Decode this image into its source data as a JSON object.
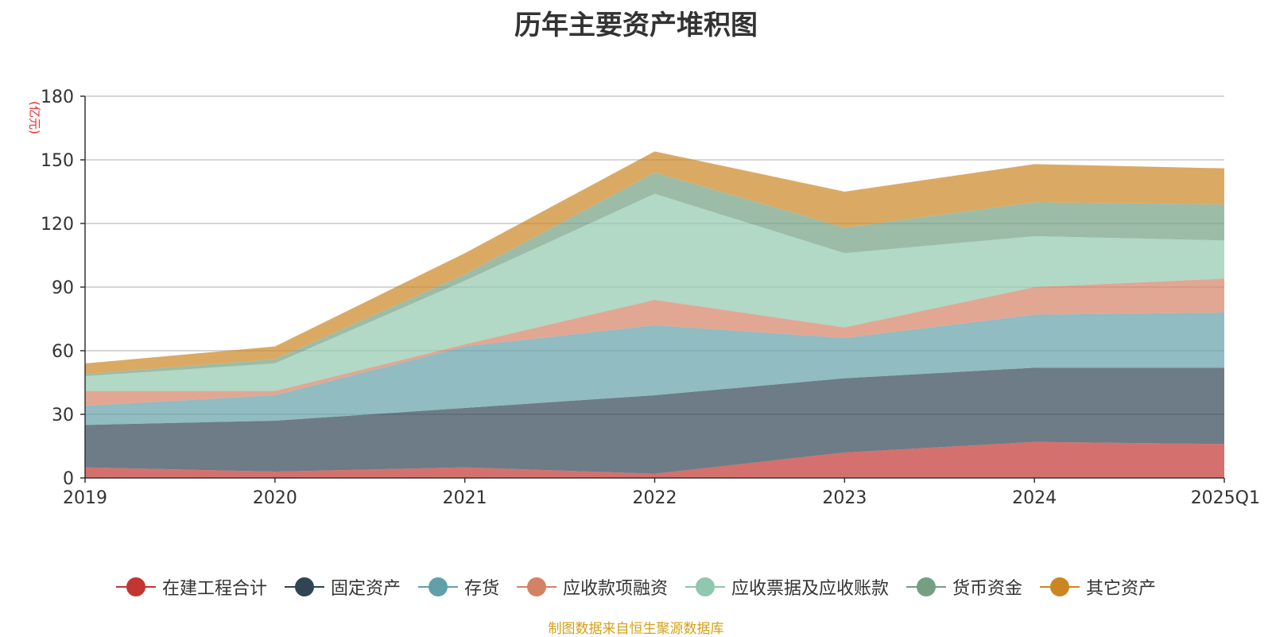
{
  "source_note": "制图数据来自恒生聚源数据库",
  "chart_data": {
    "type": "area",
    "stacked": true,
    "title": "历年主要资产堆积图",
    "ylabel": "(亿元)",
    "ylim": [
      0,
      180
    ],
    "yticks": [
      0,
      30,
      60,
      90,
      120,
      150,
      180
    ],
    "grid": true,
    "legend_position": "bottom",
    "categories": [
      "2019",
      "2020",
      "2021",
      "2022",
      "2023",
      "2024",
      "2025Q1"
    ],
    "series": [
      {
        "name": "在建工程合计",
        "color": "#c23531",
        "values": [
          5,
          3,
          5,
          2,
          12,
          17,
          16
        ]
      },
      {
        "name": "固定资产",
        "color": "#2f4554",
        "values": [
          20,
          24,
          28,
          37,
          35,
          35,
          36
        ]
      },
      {
        "name": "存货",
        "color": "#61a0a8",
        "values": [
          9,
          12,
          29,
          33,
          19,
          25,
          26
        ]
      },
      {
        "name": "应收款项融资",
        "color": "#d48265",
        "values": [
          7,
          2,
          1,
          12,
          5,
          13,
          16
        ]
      },
      {
        "name": "应收票据及应收账款",
        "color": "#91c7ae",
        "values": [
          7,
          13,
          30,
          50,
          35,
          24,
          18
        ]
      },
      {
        "name": "货币资金",
        "color": "#749f83",
        "values": [
          1,
          2,
          3,
          10,
          12,
          16,
          17
        ]
      },
      {
        "name": "其它资产",
        "color": "#ca8622",
        "values": [
          5,
          6,
          10,
          10,
          17,
          18,
          17
        ]
      }
    ]
  }
}
